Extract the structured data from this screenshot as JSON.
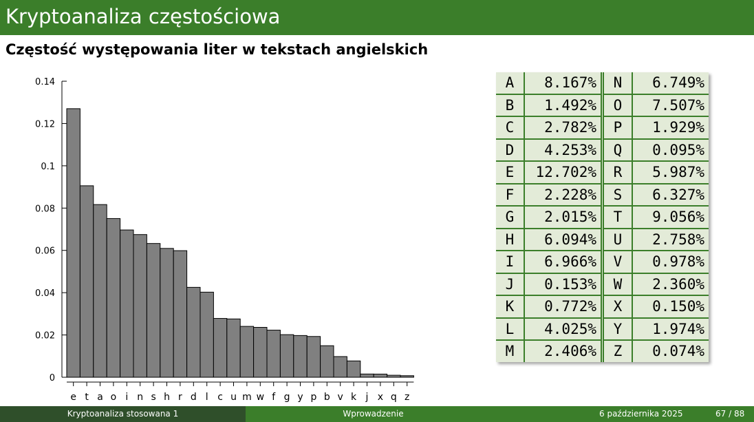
{
  "slide": {
    "title": "Kryptoanaliza częstościowa",
    "subtitle": "Częstość występowania liter w tekstach angielskich"
  },
  "chart_data": {
    "type": "bar",
    "categories": [
      "e",
      "t",
      "a",
      "o",
      "i",
      "n",
      "s",
      "h",
      "r",
      "d",
      "l",
      "c",
      "u",
      "m",
      "w",
      "f",
      "g",
      "y",
      "p",
      "b",
      "v",
      "k",
      "j",
      "x",
      "q",
      "z"
    ],
    "values": [
      0.12702,
      0.09056,
      0.08167,
      0.07507,
      0.06966,
      0.06749,
      0.06327,
      0.06094,
      0.05987,
      0.04253,
      0.04025,
      0.02782,
      0.02758,
      0.02406,
      0.0236,
      0.02228,
      0.02015,
      0.01974,
      0.01929,
      0.01492,
      0.00978,
      0.00772,
      0.00153,
      0.0015,
      0.00095,
      0.00074
    ],
    "yticks": [
      "0",
      "0.02",
      "0.04",
      "0.06",
      "0.08",
      "0.1",
      "0.12",
      "0.14"
    ],
    "ylim": [
      0,
      0.14
    ],
    "bar_color": "#808080"
  },
  "table": {
    "rows": [
      {
        "l1": "A",
        "v1": "8.167%",
        "l2": "N",
        "v2": "6.749%"
      },
      {
        "l1": "B",
        "v1": "1.492%",
        "l2": "O",
        "v2": "7.507%"
      },
      {
        "l1": "C",
        "v1": "2.782%",
        "l2": "P",
        "v2": "1.929%"
      },
      {
        "l1": "D",
        "v1": "4.253%",
        "l2": "Q",
        "v2": "0.095%"
      },
      {
        "l1": "E",
        "v1": "12.702%",
        "l2": "R",
        "v2": "5.987%"
      },
      {
        "l1": "F",
        "v1": "2.228%",
        "l2": "S",
        "v2": "6.327%"
      },
      {
        "l1": "G",
        "v1": "2.015%",
        "l2": "T",
        "v2": "9.056%"
      },
      {
        "l1": "H",
        "v1": "6.094%",
        "l2": "U",
        "v2": "2.758%"
      },
      {
        "l1": "I",
        "v1": "6.966%",
        "l2": "V",
        "v2": "0.978%"
      },
      {
        "l1": "J",
        "v1": "0.153%",
        "l2": "W",
        "v2": "2.360%"
      },
      {
        "l1": "K",
        "v1": "0.772%",
        "l2": "X",
        "v2": "0.150%"
      },
      {
        "l1": "L",
        "v1": "4.025%",
        "l2": "Y",
        "v2": "1.974%"
      },
      {
        "l1": "M",
        "v1": "2.406%",
        "l2": "Z",
        "v2": "0.074%"
      }
    ]
  },
  "footer": {
    "left": "Kryptoanaliza stosowana 1",
    "center": "Wprowadzenie",
    "date": "6 października 2025",
    "page": "67 / 88"
  },
  "colors": {
    "accent": "#3b7e2a",
    "footer_dark": "#2f4f2a",
    "table_bg": "#e3ebd8"
  }
}
